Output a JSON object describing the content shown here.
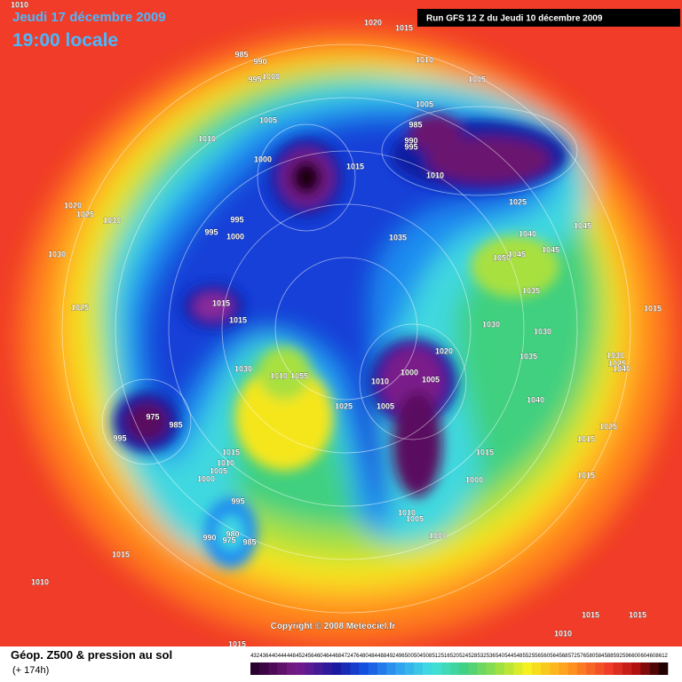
{
  "header": {
    "date": "Jeudi 17 décembre 2009",
    "time": "19:00 locale",
    "run": "Run GFS 12 Z du Jeudi 10 décembre 2009"
  },
  "footer": {
    "copyright": "Copyright © 2008 Meteociel.fr",
    "title": "Géop. Z500 & pression au sol",
    "lead": "(+ 174h)"
  },
  "isobar_labels": [
    "1010",
    "1020",
    "1015",
    "1010",
    "1005",
    "985",
    "990",
    "995",
    "1000",
    "1005",
    "1010",
    "1000",
    "1015",
    "1005",
    "985",
    "990",
    "995",
    "1010",
    "1025",
    "1020",
    "1025",
    "1030",
    "995",
    "995",
    "1000",
    "1035",
    "1040",
    "1045",
    "1050",
    "1045",
    "1045",
    "1030",
    "1035",
    "1025",
    "1015",
    "1015",
    "1015",
    "1030",
    "1030",
    "1035",
    "1020",
    "1030",
    "1030",
    "1025",
    "1040",
    "1010",
    "1055",
    "1000",
    "1005",
    "1010",
    "1005",
    "1025",
    "1040",
    "975",
    "985",
    "995",
    "1025",
    "1015",
    "1015",
    "1015",
    "1010",
    "1005",
    "1000",
    "1015",
    "1000",
    "995",
    "1010",
    "1005",
    "980",
    "990",
    "975",
    "985",
    "1000",
    "1015",
    "1010",
    "1015",
    "1015",
    "1010",
    "1015"
  ],
  "scale": {
    "ticks": [
      432,
      436,
      440,
      444,
      448,
      452,
      456,
      460,
      464,
      468,
      472,
      476,
      480,
      484,
      488,
      492,
      496,
      500,
      504,
      508,
      512,
      516,
      520,
      524,
      528,
      532,
      536,
      540,
      544,
      548,
      552,
      556,
      560,
      564,
      568,
      572,
      576,
      580,
      584,
      588,
      592,
      596,
      600,
      604,
      608,
      612
    ]
  }
}
